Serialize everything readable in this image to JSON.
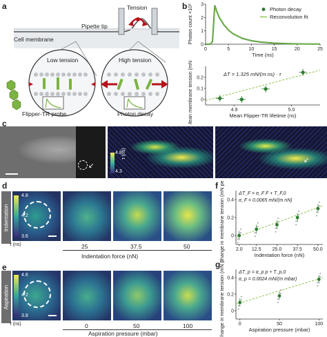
{
  "panels": {
    "a": "a",
    "b": "b",
    "c": "c",
    "d": "d",
    "e": "e",
    "f": "f",
    "g": "g"
  },
  "panel_a": {
    "tension": "Tension",
    "pipette_tip": "Pipette tip",
    "cell_membrane": "Cell membrane",
    "low_tension": "Low tension",
    "high_tension": "High tension",
    "probe_label": "Flipper-TR probe",
    "decay_label": "Photon decay"
  },
  "panel_c": {
    "colorbar_top": "4.8",
    "colorbar_bottom": "4.3",
    "colorbar_unit": "τ (ns)"
  },
  "panel_d": {
    "side_label": "Indentation",
    "colorbar_top": "4.8",
    "colorbar_mid": "4.2",
    "colorbar_bottom": "3.6",
    "colorbar_unit": "τ (ns)",
    "ticks": [
      "25",
      "37.5",
      "50"
    ],
    "axis_label": "Indentation force (nN)"
  },
  "panel_e": {
    "side_label": "Aspiration",
    "colorbar_top": "4.6",
    "colorbar_mid": "4.2",
    "colorbar_bottom": "3.8",
    "colorbar_unit": "τ (ns)",
    "ticks": [
      "0",
      "50",
      "100"
    ],
    "axis_label": "Aspiration pressure (mbar)"
  },
  "chart_data": [
    {
      "id": "b-top",
      "type": "line",
      "xlabel": "Time (ns)",
      "ylabel": "Photon count ×10³",
      "xlim": [
        0,
        25
      ],
      "ylim": [
        0,
        3
      ],
      "xticks": [
        "0",
        "5",
        "10",
        "15",
        "20",
        "25"
      ],
      "yticks": [
        "0",
        "1",
        "2",
        "3"
      ],
      "legend": [
        {
          "name": "Photon decay",
          "color": "#2e7d32"
        },
        {
          "name": "Reconvolution fit",
          "color": "#8bc34a"
        }
      ],
      "legend_placement": "top-right",
      "series": [
        {
          "name": "Photon decay",
          "x": [
            0,
            1,
            1.5,
            2,
            2.5,
            3,
            4,
            5,
            6,
            8,
            10,
            12,
            15,
            18,
            21,
            24,
            25
          ],
          "values": [
            0,
            0,
            0.2,
            2.9,
            2.4,
            2.0,
            1.45,
            1.05,
            0.78,
            0.44,
            0.26,
            0.16,
            0.08,
            0.04,
            0.02,
            0.01,
            0.01
          ]
        },
        {
          "name": "Reconvolution fit",
          "x": [
            0,
            1,
            1.5,
            2,
            2.5,
            3,
            4,
            5,
            6,
            8,
            10,
            12,
            15,
            18,
            21,
            24,
            25
          ],
          "values": [
            0,
            0,
            0.2,
            2.85,
            2.4,
            2.0,
            1.45,
            1.05,
            0.78,
            0.44,
            0.26,
            0.16,
            0.08,
            0.04,
            0.02,
            0.01,
            0.01
          ]
        }
      ]
    },
    {
      "id": "b-bottom",
      "type": "scatter",
      "xlabel": "Mean Flipper-TR lifetime (ns)",
      "ylabel": "Mean membrane tension (mN per m)",
      "xlim": [
        4.85,
        5.05
      ],
      "ylim": [
        -0.05,
        0.3
      ],
      "xticks": [
        "4.9",
        "5.0"
      ],
      "yticks": [
        "0",
        "0.1",
        "0.2"
      ],
      "annotation": "ΔT = 1.325 mN/(m ns) · τ",
      "x": [
        4.875,
        4.913,
        4.955,
        5.02
      ],
      "values": [
        0.01,
        0.0,
        0.095,
        0.245
      ],
      "fit": {
        "x": [
          4.85,
          5.05
        ],
        "values": [
          -0.01,
          0.265
        ]
      }
    },
    {
      "id": "f",
      "type": "scatter",
      "xlabel": "Indentation force (nN)",
      "ylabel": "Change in membrane tension (mN per m)",
      "xlim": [
        0,
        53
      ],
      "ylim": [
        -0.1,
        0.5
      ],
      "xticks": [
        "2.0",
        "12.5",
        "25.0",
        "37.5",
        "50.0"
      ],
      "yticks": [
        "0",
        "0.2",
        "0.4"
      ],
      "annotation_1": "ΔT_F = α_F F + T_F,0",
      "annotation_2": "α_F = 0.0065 mN/(m nN)",
      "x": [
        2.0,
        12.5,
        25.0,
        37.5,
        50.0
      ],
      "values": [
        0.0,
        0.07,
        0.12,
        0.2,
        0.3
      ],
      "fit": {
        "x": [
          0,
          53
        ],
        "values": [
          -0.02,
          0.33
        ]
      }
    },
    {
      "id": "g",
      "type": "scatter",
      "xlabel": "Aspiration pressure (mbar)",
      "ylabel": "Change in membrane tension (mN per m)",
      "xlim": [
        -5,
        105
      ],
      "ylim": [
        -0.1,
        0.5
      ],
      "xticks": [
        "0",
        "50",
        "100"
      ],
      "yticks": [
        "0",
        "0.2",
        "0.4"
      ],
      "annotation_1": "ΔT_p = α_p p + T_p,0",
      "annotation_2": "α_p = 0.0024 mN/(m mbar)",
      "x": [
        0,
        50,
        100
      ],
      "values": [
        0.1,
        0.18,
        0.38
      ],
      "fit": {
        "x": [
          -5,
          105
        ],
        "values": [
          0.08,
          0.4
        ]
      }
    }
  ]
}
